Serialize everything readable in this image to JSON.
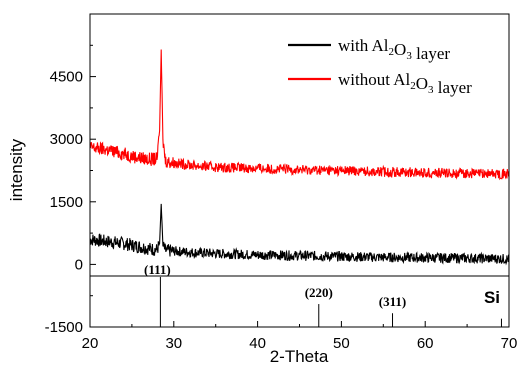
{
  "chart_data": {
    "type": "line",
    "xlabel": "2-Theta",
    "ylabel": "intensity",
    "xlim": [
      20,
      70
    ],
    "ylim": [
      -1500,
      6000
    ],
    "x_ticks": [
      20,
      30,
      40,
      50,
      60,
      70
    ],
    "y_ticks": [
      -1500,
      0,
      1500,
      3000,
      4500
    ],
    "legend": {
      "position": "top-right",
      "entries": [
        {
          "prefix": "with Al",
          "sub1": "2",
          "mid": "O",
          "sub2": "3",
          "suffix": " layer",
          "color": "#000000"
        },
        {
          "prefix": "without Al",
          "sub1": "2",
          "mid": "O",
          "sub2": "3",
          "suffix": " layer",
          "color": "#ff0000"
        }
      ]
    },
    "series": [
      {
        "color": "#000000",
        "x": [
          20,
          22,
          24,
          26,
          27,
          28,
          28.3,
          28.5,
          28.7,
          29,
          30,
          32,
          35,
          40,
          45,
          50,
          55,
          60,
          65,
          70
        ],
        "y": [
          600,
          550,
          500,
          420,
          380,
          350,
          500,
          1450,
          450,
          330,
          320,
          290,
          260,
          230,
          210,
          190,
          170,
          160,
          150,
          130
        ]
      },
      {
        "color": "#ff0000",
        "x": [
          20,
          22,
          24,
          26,
          27,
          28,
          28.3,
          28.5,
          28.7,
          29,
          30,
          32,
          35,
          40,
          45,
          50,
          55,
          60,
          65,
          70
        ],
        "y": [
          2800,
          2750,
          2650,
          2550,
          2520,
          2520,
          3200,
          5150,
          3000,
          2480,
          2430,
          2380,
          2330,
          2300,
          2270,
          2250,
          2220,
          2200,
          2180,
          2170
        ]
      }
    ],
    "reference": {
      "name": "Si",
      "peaks": [
        {
          "x": 28.4,
          "label": "(111)",
          "height": 1200
        },
        {
          "x": 47.3,
          "label": "(220)",
          "height": 550
        },
        {
          "x": 56.1,
          "label": "(311)",
          "height": 330
        },
        {
          "x": 69.1,
          "label": "",
          "height": 200
        }
      ]
    }
  }
}
